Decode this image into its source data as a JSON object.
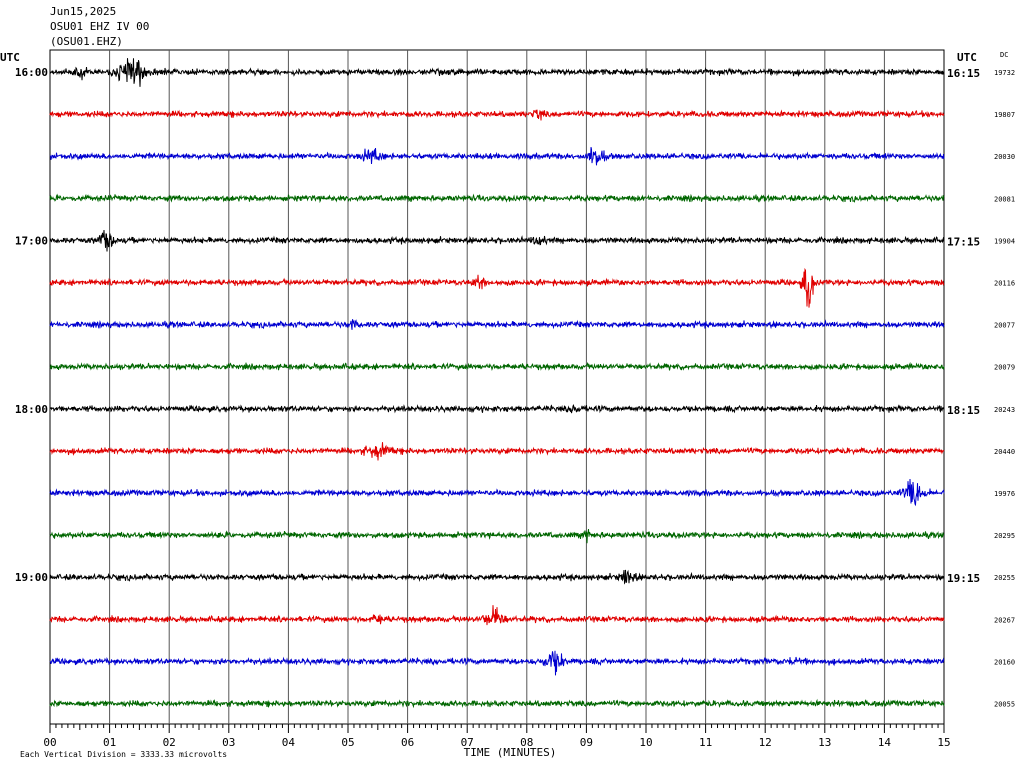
{
  "header": {
    "date": "Jun15,2025",
    "station": "OSU01 EHZ IV 00",
    "channel_code": "(OSU01.EHZ)"
  },
  "axis": {
    "left_utc_label": "UTC",
    "right_utc_label": "UTC",
    "dc_label": "DC",
    "xlabel": "TIME (MINUTES)",
    "x_ticks": [
      "00",
      "01",
      "02",
      "03",
      "04",
      "05",
      "06",
      "07",
      "08",
      "09",
      "10",
      "11",
      "12",
      "13",
      "14",
      "15"
    ],
    "footer_note": "Each Vertical Division = 3333.33 microvolts"
  },
  "colors": [
    "#000000",
    "#e00000",
    "#0000d0",
    "#006600"
  ],
  "chart_data": {
    "type": "line",
    "title": "",
    "xlabel": "TIME (MINUTES)",
    "xlim": [
      0,
      15
    ],
    "minutes_per_trace": 15,
    "grid": true,
    "traces": [
      {
        "left": "16:00",
        "right": "16:15",
        "dc": "19732",
        "events": [
          {
            "t": 1.4,
            "amp": 0.55,
            "width": 0.25
          },
          {
            "t": 0.5,
            "amp": 0.25,
            "width": 0.1
          }
        ]
      },
      {
        "left": "",
        "right": "",
        "dc": "19807",
        "events": [
          {
            "t": 8.2,
            "amp": 0.2,
            "width": 0.08
          }
        ]
      },
      {
        "left": "",
        "right": "",
        "dc": "20030",
        "events": [
          {
            "t": 9.15,
            "amp": 0.5,
            "width": 0.12
          },
          {
            "t": 5.4,
            "amp": 0.25,
            "width": 0.15
          }
        ]
      },
      {
        "left": "",
        "right": "",
        "dc": "20081",
        "events": []
      },
      {
        "left": "17:00",
        "right": "17:15",
        "dc": "19904",
        "events": [
          {
            "t": 0.95,
            "amp": 0.45,
            "width": 0.12
          },
          {
            "t": 8.2,
            "amp": 0.2,
            "width": 0.1
          }
        ]
      },
      {
        "left": "",
        "right": "",
        "dc": "20116",
        "events": [
          {
            "t": 12.72,
            "amp": 1.0,
            "width": 0.08
          },
          {
            "t": 7.2,
            "amp": 0.3,
            "width": 0.08
          }
        ]
      },
      {
        "left": "",
        "right": "",
        "dc": "20077",
        "events": [
          {
            "t": 5.1,
            "amp": 0.2,
            "width": 0.08
          }
        ]
      },
      {
        "left": "",
        "right": "",
        "dc": "20079",
        "events": []
      },
      {
        "left": "18:00",
        "right": "18:15",
        "dc": "20243",
        "events": [
          {
            "t": 8.8,
            "amp": 0.2,
            "width": 0.08
          }
        ]
      },
      {
        "left": "",
        "right": "",
        "dc": "20440",
        "events": [
          {
            "t": 5.5,
            "amp": 0.25,
            "width": 0.2
          }
        ]
      },
      {
        "left": "",
        "right": "",
        "dc": "19976",
        "events": [
          {
            "t": 14.5,
            "amp": 0.6,
            "width": 0.15
          }
        ]
      },
      {
        "left": "",
        "right": "",
        "dc": "20295",
        "events": [
          {
            "t": 9.0,
            "amp": 0.35,
            "width": 0.05
          }
        ]
      },
      {
        "left": "19:00",
        "right": "19:15",
        "dc": "20255",
        "events": [
          {
            "t": 9.7,
            "amp": 0.4,
            "width": 0.1
          }
        ]
      },
      {
        "left": "",
        "right": "",
        "dc": "20267",
        "events": [
          {
            "t": 7.45,
            "amp": 0.45,
            "width": 0.15
          },
          {
            "t": 5.5,
            "amp": 0.2,
            "width": 0.1
          }
        ]
      },
      {
        "left": "",
        "right": "",
        "dc": "20160",
        "events": [
          {
            "t": 8.45,
            "amp": 0.45,
            "width": 0.15
          },
          {
            "t": 12.5,
            "amp": 0.15,
            "width": 0.1
          }
        ]
      },
      {
        "left": "",
        "right": "",
        "dc": "20055",
        "events": []
      }
    ]
  }
}
